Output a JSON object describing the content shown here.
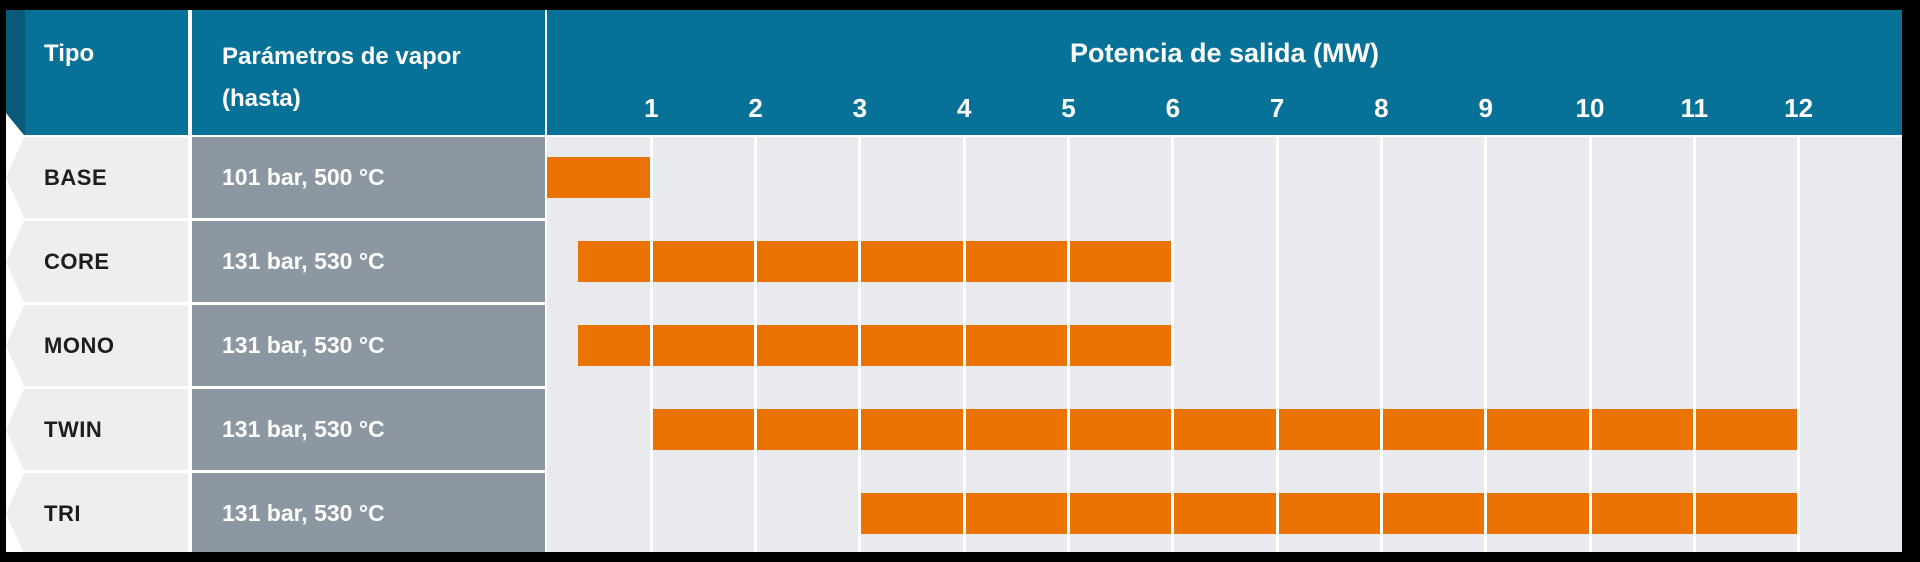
{
  "header": {
    "tipo_label": "Tipo",
    "parametros_line1": "Parámetros de vapor",
    "parametros_line2": "(hasta)",
    "potencia_label": "Potencia de salida (MW)",
    "mw_ticks": [
      "1",
      "2",
      "3",
      "4",
      "5",
      "6",
      "7",
      "8",
      "9",
      "10",
      "11",
      "12"
    ]
  },
  "rows": [
    {
      "tipo": "BASE",
      "parametros": "101 bar, 500 °C",
      "mw_range": [
        0,
        1
      ]
    },
    {
      "tipo": "CORE",
      "parametros": "131 bar, 530 °C",
      "mw_range": [
        0.3,
        6
      ]
    },
    {
      "tipo": "MONO",
      "parametros": "131 bar, 530 °C",
      "mw_range": [
        0.3,
        6
      ]
    },
    {
      "tipo": "TWIN",
      "parametros": "131 bar, 530 °C",
      "mw_range": [
        1,
        12
      ]
    },
    {
      "tipo": "TRI",
      "parametros": "131 bar, 530 °C",
      "mw_range": [
        3,
        12
      ]
    }
  ],
  "chart_data": {
    "type": "bar",
    "subtype": "horizontal-range",
    "title": "Potencia de salida (MW)",
    "xlabel": "Potencia de salida (MW)",
    "ylabel": "Tipo",
    "categories": [
      "BASE",
      "CORE",
      "MONO",
      "TWIN",
      "TRI"
    ],
    "series": [
      {
        "name": "Potencia de salida (MW)",
        "ranges": [
          [
            0,
            1
          ],
          [
            0.3,
            6
          ],
          [
            0.3,
            6
          ],
          [
            1,
            12
          ],
          [
            3,
            12
          ]
        ]
      }
    ],
    "row_annotations": [
      "101 bar, 500 °C",
      "131 bar, 530 °C",
      "131 bar, 530 °C",
      "131 bar, 530 °C",
      "131 bar, 530 °C"
    ],
    "xlim": [
      0,
      13
    ],
    "x_ticks": [
      1,
      2,
      3,
      4,
      5,
      6,
      7,
      8,
      9,
      10,
      11,
      12
    ],
    "grid": "vertical",
    "legend": "none"
  },
  "colors": {
    "teal_header": "#077198",
    "teal_dark_strip": "#095B79",
    "param_cell_gray": "#8C97A1",
    "row_label_gray": "#ECEEF0",
    "chart_bg_gray": "#E8EAED",
    "bar_orange": "#EA7303",
    "background_black": "#000000",
    "text_white": "#FFFFFF",
    "text_dark": "#1D1D1B"
  }
}
